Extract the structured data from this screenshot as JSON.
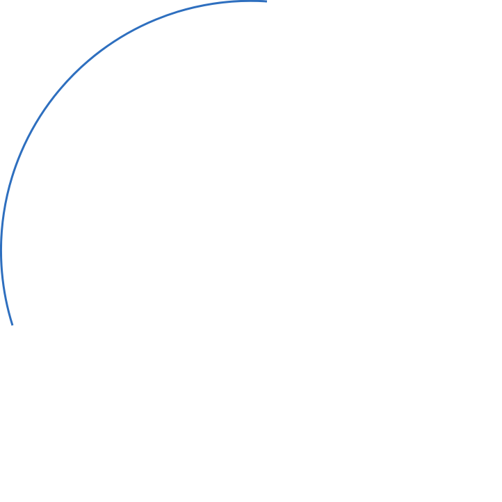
{
  "shape": {
    "type": "arc",
    "stroke_color": "#2E6FBF",
    "fill": "none"
  }
}
